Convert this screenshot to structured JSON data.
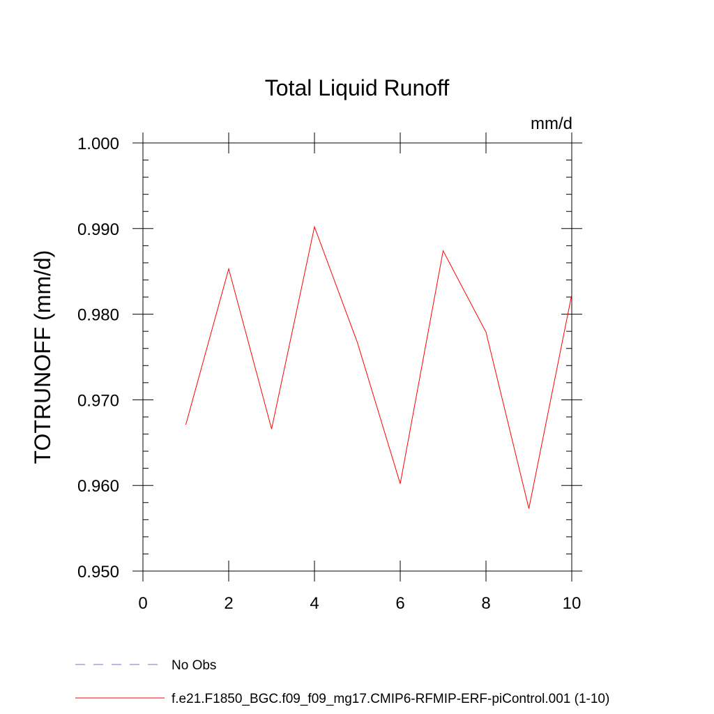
{
  "chart_data": {
    "type": "line",
    "title": "Total Liquid Runoff",
    "units": "mm/d",
    "ylabel": "TOTRUNOFF  (mm/d)",
    "xlabel": "",
    "xlim": [
      0,
      10
    ],
    "ylim": [
      0.95,
      1.0
    ],
    "xticks": [
      0,
      2,
      4,
      6,
      8,
      10
    ],
    "xtick_labels": [
      "0",
      "2",
      "4",
      "6",
      "8",
      "10"
    ],
    "yticks": [
      0.95,
      0.96,
      0.97,
      0.98,
      0.99,
      1.0
    ],
    "ytick_labels": [
      "0.950",
      "0.960",
      "0.970",
      "0.980",
      "0.990",
      "1.000"
    ],
    "grid": false,
    "legend_position": "bottom",
    "series": [
      {
        "name": "No Obs",
        "color": "#7b6fd0",
        "dash": "dashed",
        "x": [],
        "y": []
      },
      {
        "name": "f.e21.F1850_BGC.f09_f09_mg17.CMIP6-RFMIP-ERF-piControl.001 (1-10)",
        "color": "#ff0000",
        "dash": "solid",
        "x": [
          1,
          2,
          3,
          4,
          5,
          6,
          7,
          8,
          9,
          10
        ],
        "y": [
          0.9671,
          0.9853,
          0.9666,
          0.9902,
          0.9767,
          0.9602,
          0.9874,
          0.9779,
          0.9573,
          0.9823
        ]
      }
    ]
  }
}
